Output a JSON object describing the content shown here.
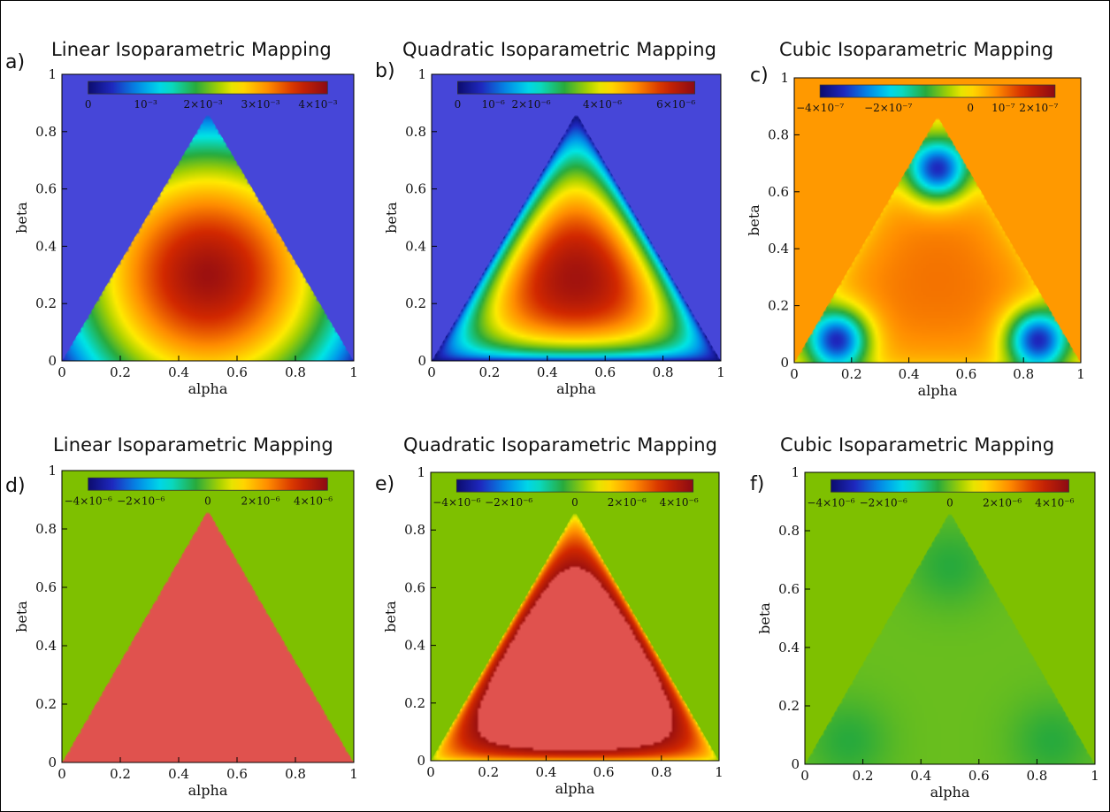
{
  "colors": {
    "background_jet_min": "#4646d8",
    "background_zero_green": "#7ec000",
    "background_orange": "#ff9900",
    "triangle_flat_red": "#e0524e"
  },
  "chart_data": [
    {
      "panel": "a)",
      "type": "heatmap",
      "title": "Linear Isoparametric Mapping",
      "xlabel": "alpha",
      "ylabel": "beta",
      "xlim": [
        0,
        1
      ],
      "ylim": [
        0,
        1
      ],
      "xticks": [
        "0",
        "0.2",
        "0.4",
        "0.6",
        "0.8",
        "1"
      ],
      "yticks": [
        "0",
        "0.2",
        "0.4",
        "0.6",
        "0.8",
        "1"
      ],
      "colorbar": {
        "position": "top",
        "range": [
          0,
          0.0042
        ],
        "ticks": [
          "0",
          "10⁻³",
          "2×10⁻³",
          "3×10⁻³",
          "4×10⁻³"
        ]
      },
      "field": "single smooth maximum near triangle centroid (≈4×10⁻³), decreasing to 0 at the vertices; outside triangle = 0",
      "triangle": [
        [
          0,
          0
        ],
        [
          1,
          0
        ],
        [
          0.5,
          0.866
        ]
      ]
    },
    {
      "panel": "b)",
      "type": "heatmap",
      "title": "Quadratic Isoparametric Mapping",
      "xlabel": "alpha",
      "ylabel": "beta",
      "xlim": [
        0,
        1
      ],
      "ylim": [
        0,
        1
      ],
      "xticks": [
        "0",
        "0.2",
        "0.4",
        "0.6",
        "0.8",
        "1"
      ],
      "yticks": [
        "0",
        "0.2",
        "0.4",
        "0.6",
        "0.8",
        "1"
      ],
      "colorbar": {
        "position": "top",
        "range": [
          0,
          6.5e-06
        ],
        "ticks": [
          "0",
          "10⁻⁶",
          "2×10⁻⁶",
          "4×10⁻⁶",
          "6×10⁻⁶"
        ]
      },
      "field": "maximum (≈6×10⁻⁶) at centroid, nested triangular contours down to 0 along the edges; outside triangle = 0",
      "triangle": [
        [
          0,
          0
        ],
        [
          1,
          0
        ],
        [
          0.5,
          0.866
        ]
      ]
    },
    {
      "panel": "c)",
      "type": "heatmap",
      "title": "Cubic Isoparametric Mapping",
      "xlabel": "alpha",
      "ylabel": "beta",
      "xlim": [
        0,
        1
      ],
      "ylim": [
        0,
        1
      ],
      "xticks": [
        "0",
        "0.2",
        "0.4",
        "0.6",
        "0.8",
        "1"
      ],
      "yticks": [
        "0",
        "0.2",
        "0.4",
        "0.6",
        "0.8",
        "1"
      ],
      "colorbar": {
        "position": "top",
        "range": [
          -4.5e-07,
          2.5e-07
        ],
        "ticks": [
          "−4×10⁻⁷",
          "−2×10⁻⁷",
          "0",
          "10⁻⁷",
          "2×10⁻⁷"
        ]
      },
      "field": "three negative minima (≈−4×10⁻⁷) near the vertices, positive regions near edge midpoints; outside triangle = 0",
      "minima": [
        [
          0.15,
          0.08
        ],
        [
          0.85,
          0.08
        ],
        [
          0.5,
          0.68
        ]
      ],
      "triangle": [
        [
          0,
          0
        ],
        [
          1,
          0
        ],
        [
          0.5,
          0.866
        ]
      ]
    },
    {
      "panel": "d)",
      "type": "heatmap",
      "title": "Linear Isoparametric Mapping",
      "xlabel": "alpha",
      "ylabel": "beta",
      "xlim": [
        0,
        1
      ],
      "ylim": [
        0,
        1
      ],
      "xticks": [
        "0",
        "0.2",
        "0.4",
        "0.6",
        "0.8",
        "1"
      ],
      "yticks": [
        "0",
        "0.2",
        "0.4",
        "0.6",
        "0.8",
        "1"
      ],
      "colorbar": {
        "position": "top",
        "range": [
          -4.5e-06,
          4.5e-06
        ],
        "ticks": [
          "−4×10⁻⁶",
          "−2×10⁻⁶",
          "0",
          "2×10⁻⁶",
          "4×10⁻⁶"
        ]
      },
      "field": "uniform value above the colorbar maximum inside triangle; outside triangle = 0",
      "triangle": [
        [
          0,
          0
        ],
        [
          1,
          0
        ],
        [
          0.5,
          0.866
        ]
      ]
    },
    {
      "panel": "e)",
      "type": "heatmap",
      "title": "Quadratic Isoparametric Mapping",
      "xlabel": "alpha",
      "ylabel": "beta",
      "xlim": [
        0,
        1
      ],
      "ylim": [
        0,
        1
      ],
      "xticks": [
        "0",
        "0.2",
        "0.4",
        "0.6",
        "0.8",
        "1"
      ],
      "yticks": [
        "0",
        "0.2",
        "0.4",
        "0.6",
        "0.8",
        "1"
      ],
      "colorbar": {
        "position": "top",
        "range": [
          -4.5e-06,
          4.5e-06
        ],
        "ticks": [
          "−4×10⁻⁶",
          "−2×10⁻⁶",
          "0",
          "2×10⁻⁶",
          "4×10⁻⁶"
        ]
      },
      "field": "saturated interior beyond 4×10⁻⁶, decreasing through dark red/orange/yellow bands to 0 at the edges; outside triangle = 0",
      "triangle": [
        [
          0,
          0
        ],
        [
          1,
          0
        ],
        [
          0.5,
          0.866
        ]
      ]
    },
    {
      "panel": "f)",
      "type": "heatmap",
      "title": "Cubic Isoparametric Mapping",
      "xlabel": "alpha",
      "ylabel": "beta",
      "xlim": [
        0,
        1
      ],
      "ylim": [
        0,
        1
      ],
      "xticks": [
        "0",
        "0.2",
        "0.4",
        "0.6",
        "0.8",
        "1"
      ],
      "yticks": [
        "0",
        "0.2",
        "0.4",
        "0.6",
        "0.8",
        "1"
      ],
      "colorbar": {
        "position": "top",
        "range": [
          -4.5e-06,
          4.5e-06
        ],
        "ticks": [
          "−4×10⁻⁶",
          "−2×10⁻⁶",
          "0",
          "2×10⁻⁶",
          "4×10⁻⁶"
        ]
      },
      "field": "values near 0 throughout the triangle with faint variation (slight negative near vertices)",
      "triangle": [
        [
          0,
          0
        ],
        [
          1,
          0
        ],
        [
          0.5,
          0.866
        ]
      ]
    }
  ]
}
